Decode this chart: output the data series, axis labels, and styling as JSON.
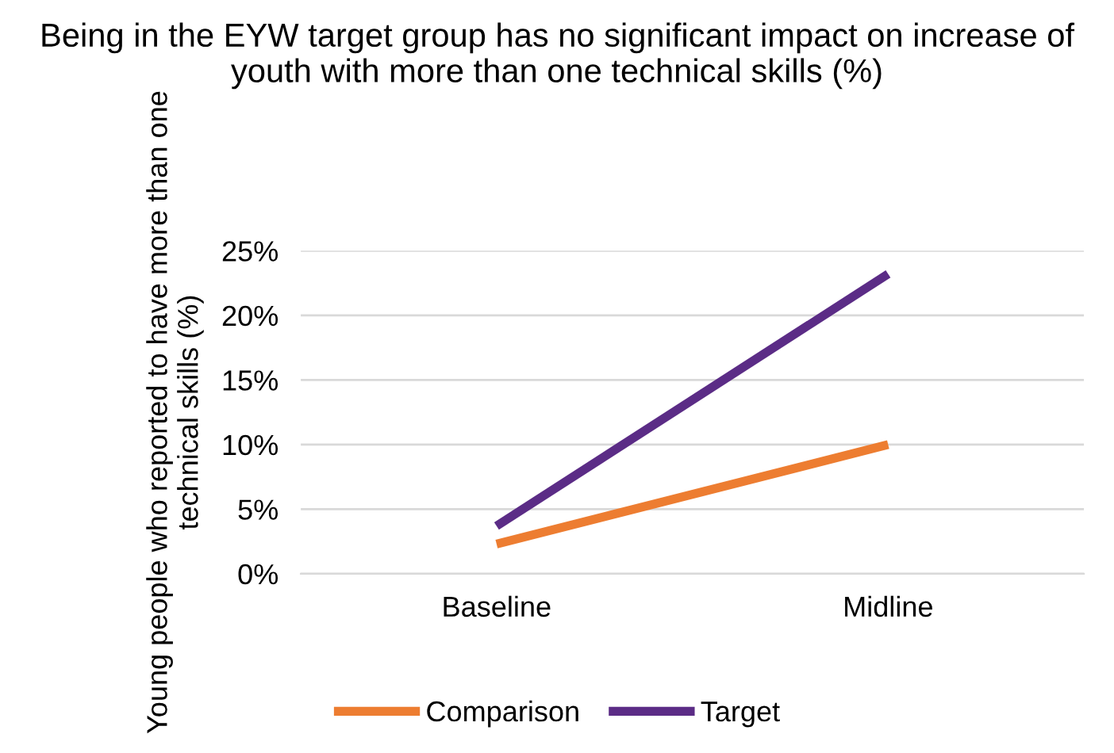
{
  "chart_data": {
    "type": "line",
    "title": "Being in the EYW target group has no significant impact on increase of youth with more than one technical skills (%)",
    "ylabel": "Young people who reported to have more than one technical skills (%)",
    "categories": [
      "Baseline",
      "Midline"
    ],
    "series": [
      {
        "name": "Comparison",
        "color": "#ed7d31",
        "values": [
          2.3,
          10
        ]
      },
      {
        "name": "Target",
        "color": "#5b2c86",
        "values": [
          3.7,
          23.2
        ]
      }
    ],
    "ylim": [
      0,
      25
    ],
    "yticks": [
      {
        "value": 0,
        "label": "0%"
      },
      {
        "value": 5,
        "label": "5%"
      },
      {
        "value": 10,
        "label": "10%"
      },
      {
        "value": 15,
        "label": "15%"
      },
      {
        "value": 20,
        "label": "20%"
      },
      {
        "value": 25,
        "label": "25%"
      }
    ],
    "grid": "y",
    "legend": "bottom",
    "marker": "none",
    "line_style": "solid"
  }
}
